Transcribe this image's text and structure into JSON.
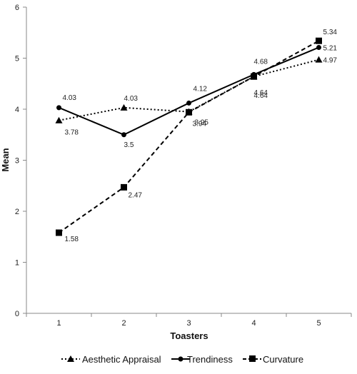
{
  "chart_data": {
    "type": "line",
    "title": "",
    "xlabel": "Toasters",
    "ylabel": "Mean",
    "x": [
      1,
      2,
      3,
      4,
      5
    ],
    "xlim": [
      0.5,
      5.5
    ],
    "ylim": [
      0,
      6
    ],
    "yticks": [
      0,
      1,
      2,
      3,
      4,
      5,
      6
    ],
    "grid": false,
    "legend_position": "bottom",
    "series": [
      {
        "name": "Aesthetic Appraisal",
        "marker": "triangle",
        "line": "dotted",
        "color": "#000000",
        "values": [
          3.78,
          4.03,
          3.95,
          4.64,
          4.97
        ],
        "labels": [
          "3.78",
          "4.03",
          "3.95",
          "4.64",
          "4.97"
        ]
      },
      {
        "name": "Trendiness",
        "marker": "circle",
        "line": "solid",
        "color": "#000000",
        "values": [
          4.03,
          3.5,
          4.12,
          4.68,
          5.21
        ],
        "labels": [
          "4.03",
          "3.5",
          "4.12",
          "4.68",
          "5.21"
        ]
      },
      {
        "name": "Curvature",
        "marker": "square",
        "line": "dashed",
        "color": "#000000",
        "values": [
          1.58,
          2.47,
          3.94,
          4.64,
          5.34
        ],
        "labels": [
          "1.58",
          "2.47",
          "3.94",
          "4.64",
          "5.34"
        ]
      }
    ]
  }
}
